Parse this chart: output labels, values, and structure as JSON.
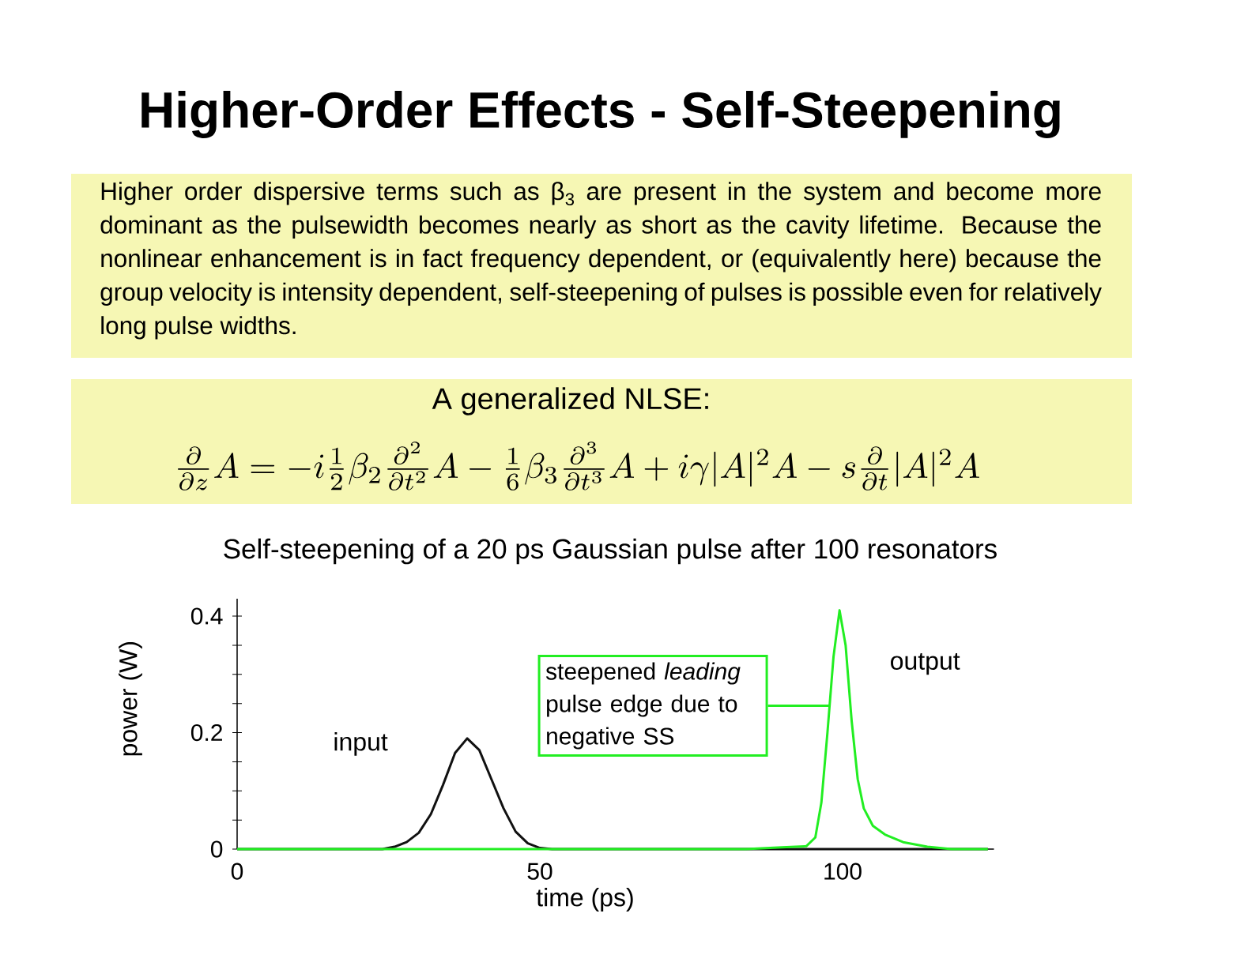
{
  "chart_data": {
    "type": "line",
    "title": "Higher-Order Effects - Self-Steepening",
    "subtitle": "Self-steepening of a 20 ps Gaussian pulse after 100 resonators",
    "xlabel": "time (ps)",
    "ylabel": "power (W)",
    "annotations": [
      "Higher order dispersive terms such as β$_{3}$ are present in the system and become more dominant as the pulsewidth becomes nearly as short as the cavity lifetime. Because the nonlinear enhancement is in fact frequency dependent, or (equivalently here) because the group velocity is intensity dependent, self-steepening of pulses is possible even for relatively long pulse widths.",
      "A generalized NLSE:",
      "\\frac{\\partial}{\\partial z}A = -i\\frac{1}{2}\\beta_2\\frac{\\partial^2}{\\partial t^2}A - \\frac{1}{6}\\beta_3\\frac{\\partial^3}{\\partial t^3}A + i\\gamma|A|^2A - s\\frac{\\partial}{\\partial t}|A|^2A",
      "steepened *leading* pulse edge due to negative SS"
    ],
    "series": [
      {
        "name": "input",
        "color": "#111111",
        "x": [
          0,
          24,
          26,
          28,
          30,
          32,
          34,
          36,
          38,
          40,
          42,
          44,
          46,
          48,
          50,
          52,
          80,
          124
        ],
        "values": [
          0,
          0,
          0.004,
          0.012,
          0.028,
          0.06,
          0.11,
          0.165,
          0.19,
          0.17,
          0.12,
          0.07,
          0.03,
          0.01,
          0.002,
          0,
          0,
          0
        ]
      },
      {
        "name": "output",
        "color": "#22ee22",
        "x": [
          0,
          84,
          90,
          94,
          95.5,
          96.5,
          97.5,
          98.5,
          99.5,
          100.5,
          101.5,
          102.5,
          103.5,
          105,
          107,
          110,
          114,
          118,
          124
        ],
        "values": [
          0,
          0,
          0.003,
          0.005,
          0.02,
          0.08,
          0.2,
          0.33,
          0.41,
          0.35,
          0.22,
          0.12,
          0.07,
          0.04,
          0.025,
          0.012,
          0.004,
          0,
          0
        ]
      }
    ],
    "xlim": [
      0,
      125
    ],
    "ylim": [
      0,
      0.43
    ],
    "xticks": [
      0,
      50,
      100
    ],
    "yticks": [
      0,
      {
        "value": 0.05,
        "label": null
      },
      {
        "value": 0.1,
        "label": null
      },
      {
        "value": 0.15,
        "label": null
      },
      0.2,
      {
        "value": 0.25,
        "label": null
      },
      {
        "value": 0.3,
        "label": null
      },
      {
        "value": 0.35,
        "label": null
      },
      0.4
    ],
    "marker": "none",
    "line_style": "solid",
    "legend": false,
    "grid": false
  }
}
